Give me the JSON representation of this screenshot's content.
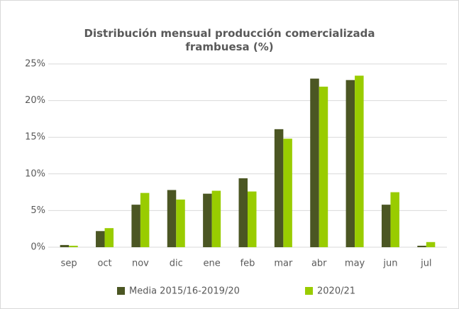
{
  "chart_data": {
    "type": "bar",
    "title": "Distribución mensual producción comercializada frambuesa (%)",
    "categories": [
      "sep",
      "oct",
      "nov",
      "dic",
      "ene",
      "feb",
      "mar",
      "abr",
      "may",
      "jun",
      "jul"
    ],
    "series": [
      {
        "name": "Media 2015/16-2019/20",
        "color": "#4b5623",
        "values": [
          0.3,
          2.2,
          5.8,
          7.8,
          7.3,
          9.4,
          16.1,
          23.0,
          22.8,
          5.8,
          0.2
        ]
      },
      {
        "name": "2020/21",
        "color": "#99cc00",
        "values": [
          0.2,
          2.6,
          7.4,
          6.5,
          7.7,
          7.6,
          14.8,
          21.9,
          23.4,
          7.5,
          0.7
        ]
      }
    ],
    "ylim": [
      0,
      25
    ],
    "yticks": [
      {
        "value": 0,
        "label": "0%"
      },
      {
        "value": 5,
        "label": "5%"
      },
      {
        "value": 10,
        "label": "10%"
      },
      {
        "value": 15,
        "label": "15%"
      },
      {
        "value": 20,
        "label": "20%"
      },
      {
        "value": 25,
        "label": "25%"
      }
    ],
    "grid": true,
    "legend": "bottom"
  }
}
